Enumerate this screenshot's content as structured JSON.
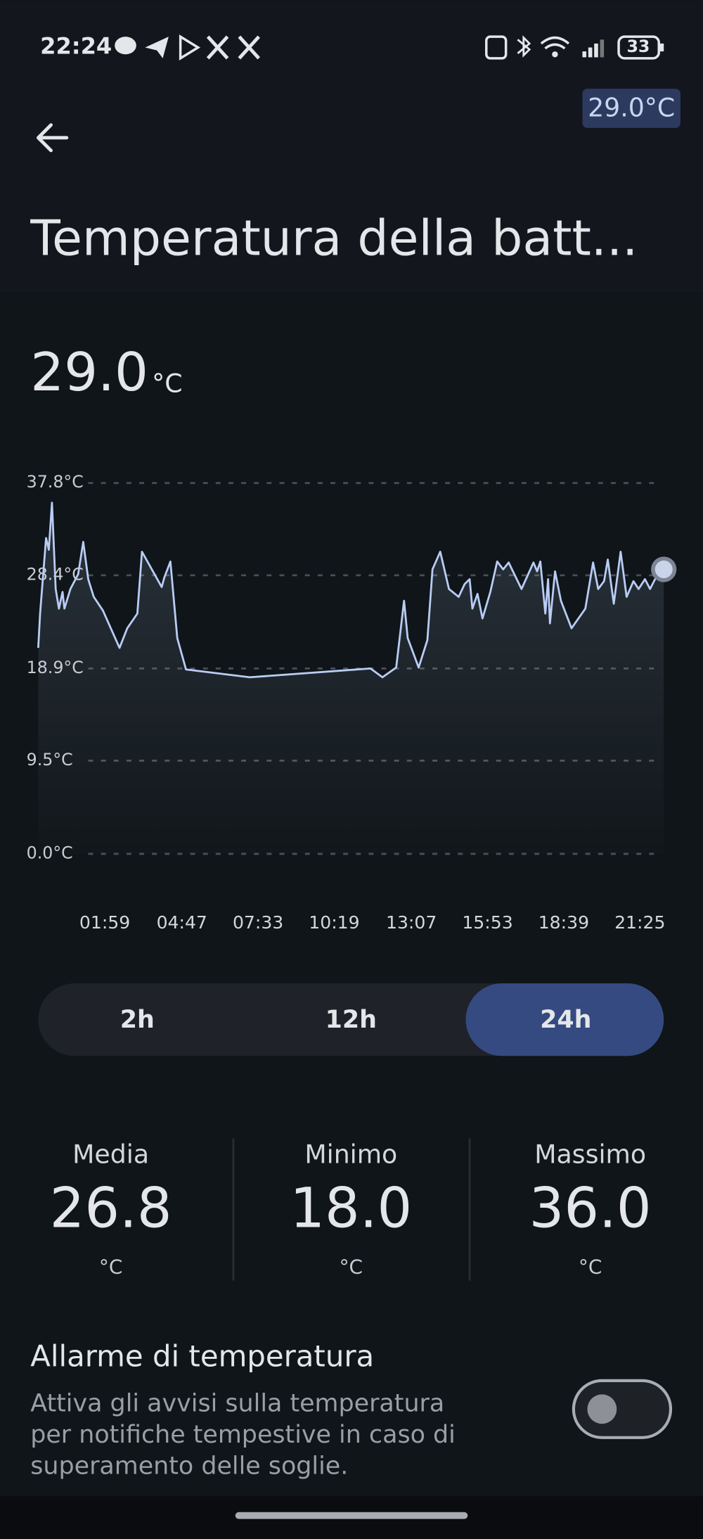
{
  "status_bar": {
    "time": "22:24",
    "battery": "33"
  },
  "header": {
    "badge": "29.0°C",
    "title": "Temperatura della batt..."
  },
  "current": {
    "value": "29.0",
    "unit": "°C"
  },
  "chart_data": {
    "type": "line",
    "x": [
      -26,
      -22,
      -9,
      -3,
      4,
      12,
      19,
      27,
      31,
      44,
      61,
      72,
      83,
      95,
      115,
      132,
      151,
      168,
      190,
      200,
      243,
      249,
      262,
      277,
      296,
      435,
      698,
      724,
      754,
      771,
      779,
      803,
      822,
      833,
      850,
      869,
      890,
      903,
      914,
      920,
      931,
      942,
      959,
      974,
      987,
      999,
      1027,
      1053,
      1061,
      1068,
      1079,
      1085,
      1089,
      1100,
      1113,
      1136,
      1166,
      1183,
      1194,
      1207,
      1215,
      1228,
      1243,
      1256,
      1271,
      1282,
      1296,
      1307,
      1318,
      1337
    ],
    "series": [
      {
        "color": "#b9ccf5",
        "values": [
          21.0,
          24.5,
          32.2,
          31.0,
          35.8,
          27.0,
          25.0,
          26.7,
          25.0,
          27.0,
          28.5,
          31.8,
          28.0,
          26.2,
          24.8,
          23.0,
          21.0,
          23.0,
          24.5,
          30.8,
          27.2,
          28.2,
          29.8,
          22.0,
          18.8,
          18.0,
          18.9,
          18.0,
          19.0,
          25.8,
          22.0,
          19.0,
          21.8,
          29.0,
          30.8,
          27.0,
          26.2,
          27.5,
          28.0,
          25.0,
          26.5,
          24.0,
          26.7,
          29.8,
          29.0,
          29.7,
          27.0,
          29.7,
          28.8,
          29.8,
          24.5,
          28.0,
          23.5,
          28.8,
          25.8,
          23.0,
          25.0,
          29.7,
          27.0,
          27.8,
          30.0,
          25.5,
          30.8,
          26.2,
          27.8,
          27.0,
          28.0,
          27.0,
          28.0,
          29.0
        ]
      }
    ],
    "xlim": [
      -26,
      1337
    ],
    "xticks": [
      {
        "value": 119,
        "label": "01:59"
      },
      {
        "value": 287,
        "label": "04:47"
      },
      {
        "value": 453,
        "label": "07:33"
      },
      {
        "value": 619,
        "label": "10:19"
      },
      {
        "value": 787,
        "label": "13:07"
      },
      {
        "value": 953,
        "label": "15:53"
      },
      {
        "value": 1119,
        "label": "18:39"
      },
      {
        "value": 1285,
        "label": "21:25"
      }
    ],
    "ylim": [
      0,
      37.8
    ],
    "yticks": [
      {
        "value": 37.8,
        "label": "37.8°C"
      },
      {
        "value": 28.4,
        "label": "28.4°C"
      },
      {
        "value": 18.9,
        "label": "18.9°C"
      },
      {
        "value": 9.5,
        "label": "9.5°C"
      },
      {
        "value": 0,
        "label": "0.0°C"
      }
    ],
    "grid": true
  },
  "ranges": [
    "2h",
    "12h",
    "24h"
  ],
  "stats": [
    {
      "label": "Media",
      "value": "26.8",
      "unit": "°C"
    },
    {
      "label": "Minimo",
      "value": "18.0",
      "unit": "°C"
    },
    {
      "label": "Massimo",
      "value": "36.0",
      "unit": "°C"
    }
  ],
  "alarm": {
    "title": "Allarme di temperatura",
    "description": [
      "Attiva gli avvisi sulla temperatura",
      "per notifiche tempestive in caso di",
      "superamento delle soglie."
    ]
  }
}
